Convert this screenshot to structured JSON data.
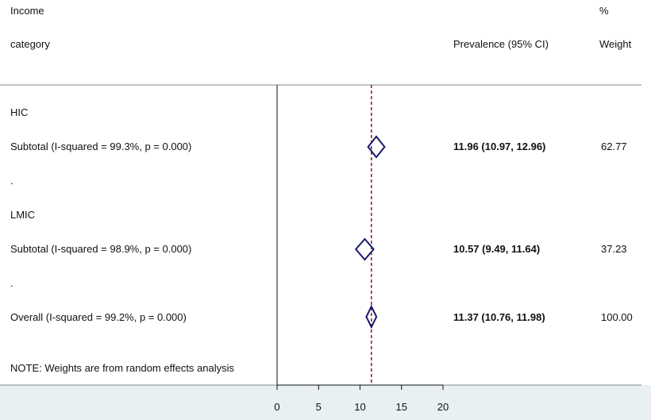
{
  "header": {
    "col1_line1": "Income",
    "col1_line2": "category",
    "col2": "Prevalence (95% CI)",
    "col3_line1": "%",
    "col3_line2": "Weight"
  },
  "rows": [
    {
      "label": "HIC",
      "type": "group"
    },
    {
      "label": "Subtotal  (I-squared = 99.3%, p = 0.000)",
      "type": "subtotal",
      "estimate": 11.96,
      "lower": 10.97,
      "upper": 12.96,
      "ci_text": "11.96 (10.97, 12.96)",
      "weight": "62.77"
    },
    {
      "label": ".",
      "type": "spacer"
    },
    {
      "label": "LMIC",
      "type": "group"
    },
    {
      "label": "Subtotal  (I-squared = 98.9%, p = 0.000)",
      "type": "subtotal",
      "estimate": 10.57,
      "lower": 9.49,
      "upper": 11.64,
      "ci_text": "10.57 (9.49, 11.64)",
      "weight": "37.23"
    },
    {
      "label": ".",
      "type": "spacer"
    },
    {
      "label": "Overall  (I-squared = 99.2%, p = 0.000)",
      "type": "overall",
      "estimate": 11.37,
      "lower": 10.76,
      "upper": 11.98,
      "ci_text": "11.37 (10.76, 11.98)",
      "weight": "100.00"
    }
  ],
  "note": "NOTE: Weights are from random effects analysis",
  "chart_data": {
    "type": "forest",
    "xlim": [
      0,
      20
    ],
    "xticks": [
      0,
      5,
      10,
      15,
      20
    ],
    "null_line": 0,
    "overall_line": 11.37,
    "series": [
      {
        "estimate": 11.96,
        "lower": 10.97,
        "upper": 12.96
      },
      {
        "estimate": 10.57,
        "lower": 9.49,
        "upper": 11.64
      },
      {
        "estimate": 11.37,
        "lower": 10.76,
        "upper": 11.98
      }
    ]
  },
  "colors": {
    "diamond": "#1a1a6e",
    "overall_line": "#8b1a1a",
    "axis_band": "#e8f0f4",
    "rule": "#888888"
  }
}
